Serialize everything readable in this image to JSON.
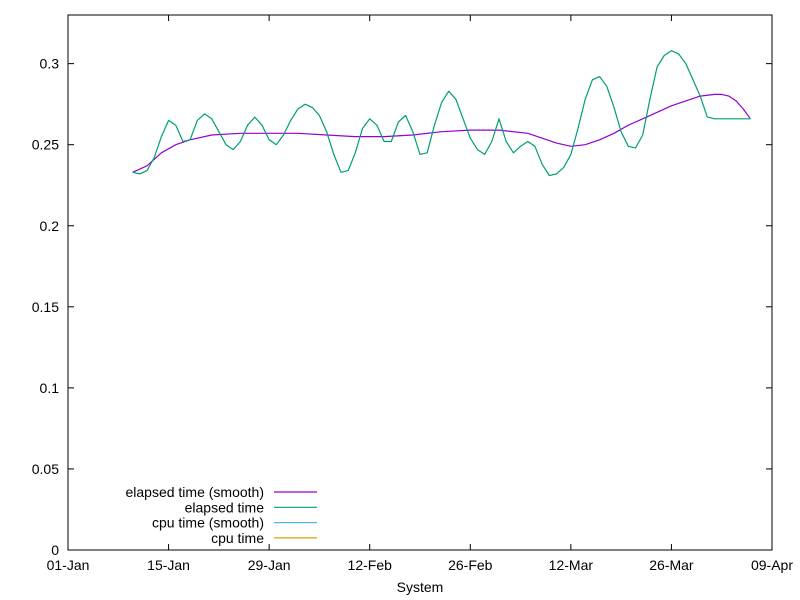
{
  "chart_data": {
    "type": "line",
    "xlabel": "System",
    "ylabel": "",
    "title": "",
    "x_axis": {
      "min": 0,
      "max": 98,
      "ticks": [
        {
          "value": 0,
          "label": "01-Jan"
        },
        {
          "value": 14,
          "label": "15-Jan"
        },
        {
          "value": 28,
          "label": "29-Jan"
        },
        {
          "value": 42,
          "label": "12-Feb"
        },
        {
          "value": 56,
          "label": "26-Feb"
        },
        {
          "value": 70,
          "label": "12-Mar"
        },
        {
          "value": 84,
          "label": "26-Mar"
        },
        {
          "value": 98,
          "label": "09-Apr"
        }
      ]
    },
    "y_axis": {
      "min": 0,
      "max": 0.33,
      "ticks": [
        {
          "value": 0,
          "label": "0"
        },
        {
          "value": 0.05,
          "label": "0.05"
        },
        {
          "value": 0.1,
          "label": "0.1"
        },
        {
          "value": 0.15,
          "label": "0.15"
        },
        {
          "value": 0.2,
          "label": "0.2"
        },
        {
          "value": 0.25,
          "label": "0.25"
        },
        {
          "value": 0.3,
          "label": "0.3"
        }
      ]
    },
    "grid": false,
    "legend_position": "bottom-left",
    "series": [
      {
        "name": "elapsed time (smooth)",
        "color": "#9400d3",
        "x": [
          9,
          11,
          13,
          15,
          17,
          20,
          24,
          28,
          32,
          36,
          40,
          44,
          48,
          52,
          56,
          60,
          64,
          68,
          70,
          72,
          74,
          76,
          78,
          80,
          82,
          84,
          86,
          88,
          90,
          91,
          92,
          93,
          94,
          95
        ],
        "y": [
          0.233,
          0.237,
          0.245,
          0.25,
          0.253,
          0.256,
          0.257,
          0.257,
          0.257,
          0.256,
          0.255,
          0.255,
          0.256,
          0.258,
          0.259,
          0.259,
          0.257,
          0.251,
          0.249,
          0.25,
          0.253,
          0.257,
          0.262,
          0.266,
          0.27,
          0.274,
          0.277,
          0.28,
          0.281,
          0.281,
          0.28,
          0.277,
          0.272,
          0.266
        ]
      },
      {
        "name": "elapsed time",
        "color": "#009e73",
        "x": [
          9,
          10,
          11,
          12,
          13,
          14,
          15,
          16,
          17,
          18,
          19,
          20,
          21,
          22,
          23,
          24,
          25,
          26,
          27,
          28,
          29,
          30,
          31,
          32,
          33,
          34,
          35,
          36,
          37,
          38,
          39,
          40,
          41,
          42,
          43,
          44,
          45,
          46,
          47,
          48,
          49,
          50,
          51,
          52,
          53,
          54,
          55,
          56,
          57,
          58,
          59,
          60,
          61,
          62,
          63,
          64,
          65,
          66,
          67,
          68,
          69,
          70,
          71,
          72,
          73,
          74,
          75,
          76,
          77,
          78,
          79,
          80,
          81,
          82,
          83,
          84,
          85,
          86,
          87,
          88,
          89,
          90,
          91,
          92,
          93,
          94,
          95
        ],
        "y": [
          0.233,
          0.232,
          0.234,
          0.242,
          0.255,
          0.265,
          0.262,
          0.252,
          0.253,
          0.265,
          0.269,
          0.266,
          0.258,
          0.25,
          0.247,
          0.252,
          0.262,
          0.267,
          0.262,
          0.253,
          0.25,
          0.256,
          0.265,
          0.272,
          0.275,
          0.273,
          0.268,
          0.258,
          0.244,
          0.233,
          0.234,
          0.245,
          0.26,
          0.266,
          0.262,
          0.252,
          0.252,
          0.264,
          0.268,
          0.258,
          0.244,
          0.245,
          0.262,
          0.276,
          0.283,
          0.278,
          0.266,
          0.254,
          0.247,
          0.244,
          0.252,
          0.266,
          0.252,
          0.245,
          0.249,
          0.252,
          0.249,
          0.238,
          0.231,
          0.232,
          0.236,
          0.244,
          0.26,
          0.278,
          0.29,
          0.292,
          0.286,
          0.273,
          0.258,
          0.249,
          0.248,
          0.256,
          0.278,
          0.298,
          0.305,
          0.308,
          0.306,
          0.3,
          0.29,
          0.28,
          0.267,
          0.266,
          0.266,
          0.266,
          0.266,
          0.266,
          0.266
        ]
      },
      {
        "name": "cpu time (smooth)",
        "color": "#56b4e9",
        "x": [],
        "y": []
      },
      {
        "name": "cpu time",
        "color": "#e69f00",
        "x": [],
        "y": []
      }
    ]
  }
}
